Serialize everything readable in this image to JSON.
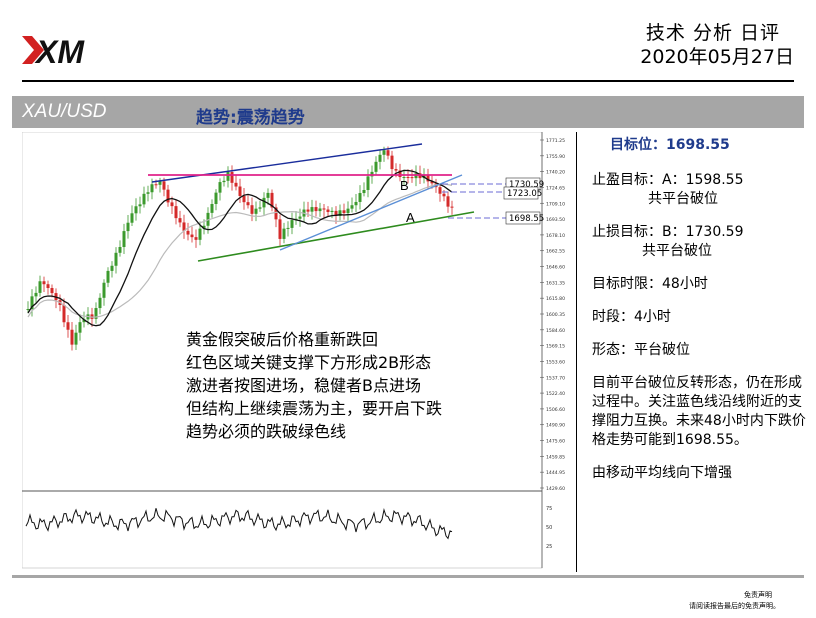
{
  "header": {
    "report_title": "技术 分析 日评",
    "date": "2020年05月27日",
    "logo_text": "XM"
  },
  "band": {
    "symbol": "XAU/USD",
    "trend": "趋势:震荡趋势"
  },
  "chart": {
    "labels": {
      "b": "B",
      "a": "A",
      "level_1": "1730.59",
      "level_2": "1723.05",
      "level_3": "1698.55"
    },
    "axis_ticks": [
      "1771.25",
      "1755.90",
      "1740.20",
      "1724.65",
      "1709.10",
      "1693.50",
      "1678.10",
      "1662.55",
      "1646.60",
      "1631.35",
      "1615.80",
      "1600.35",
      "1584.60",
      "1569.15",
      "1553.60",
      "1537.70",
      "1522.40",
      "1506.60",
      "1490.90",
      "1475.60",
      "1459.85",
      "1444.95",
      "1429.60"
    ],
    "oscillator_ticks": [
      "75",
      "50",
      "25"
    ],
    "colors": {
      "resistance": "#e0228a",
      "upper_channel": "#1a2d9c",
      "lower_channel": "#2e8b1e",
      "support_blue": "#5b8fd6",
      "ma": "#111111",
      "ma_slow": "#bbbbbb",
      "bull": "#3c9a2e",
      "bear": "#d42a2a"
    }
  },
  "note": {
    "lines": [
      "黄金假突破后价格重新跌回",
      "红色区域关键支撑下方形成2B形态",
      "激进者按图进场，稳健者B点进场",
      "但结构上继续震荡为主，要开启下跌",
      "趋势必须的跌破绿色线"
    ]
  },
  "panel": {
    "target": "目标位：1698.55",
    "tp_label": "止盈目标：A：1598.55",
    "tp_sub": "共平台破位",
    "sl_label": "止损目标：B：1730.59",
    "sl_sub": "共平台破位",
    "time_limit": "目标时限：48小时",
    "period": "时段：4小时",
    "pattern": "形态：平台破位",
    "desc": "目前平台破位反转形态，仍在形成过程中。关注蓝色线沿线附近的支撑阻力互换。未来48小时内下跌价格走势可能到1698.55。",
    "ma_note": "由移动平均线向下增强"
  },
  "footer": {
    "disclaimer_title": "免责声明",
    "disclaimer_text": "请阅读报告最后的免责声明。"
  }
}
